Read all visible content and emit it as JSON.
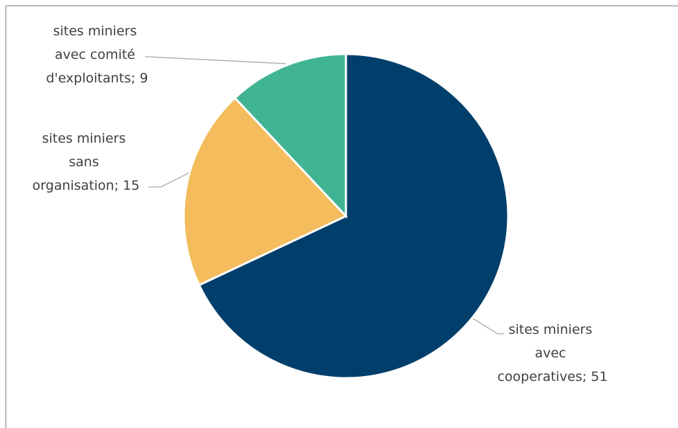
{
  "chart_data": {
    "type": "pie",
    "start_angle": "12 o'clock",
    "direction": "clockwise",
    "legend": "none",
    "slices": [
      {
        "label_lines": [
          "sites miniers",
          "avec",
          "cooperatives; 51"
        ],
        "value": 51,
        "color": "#003f6b"
      },
      {
        "label_lines": [
          "sites miniers",
          "sans",
          "organisation; 15"
        ],
        "value": 15,
        "color": "#f4bc5c"
      },
      {
        "label_lines": [
          "sites miniers",
          "avec comité",
          "d'exploitants; 9"
        ],
        "value": 9,
        "color": "#41b494"
      }
    ]
  }
}
